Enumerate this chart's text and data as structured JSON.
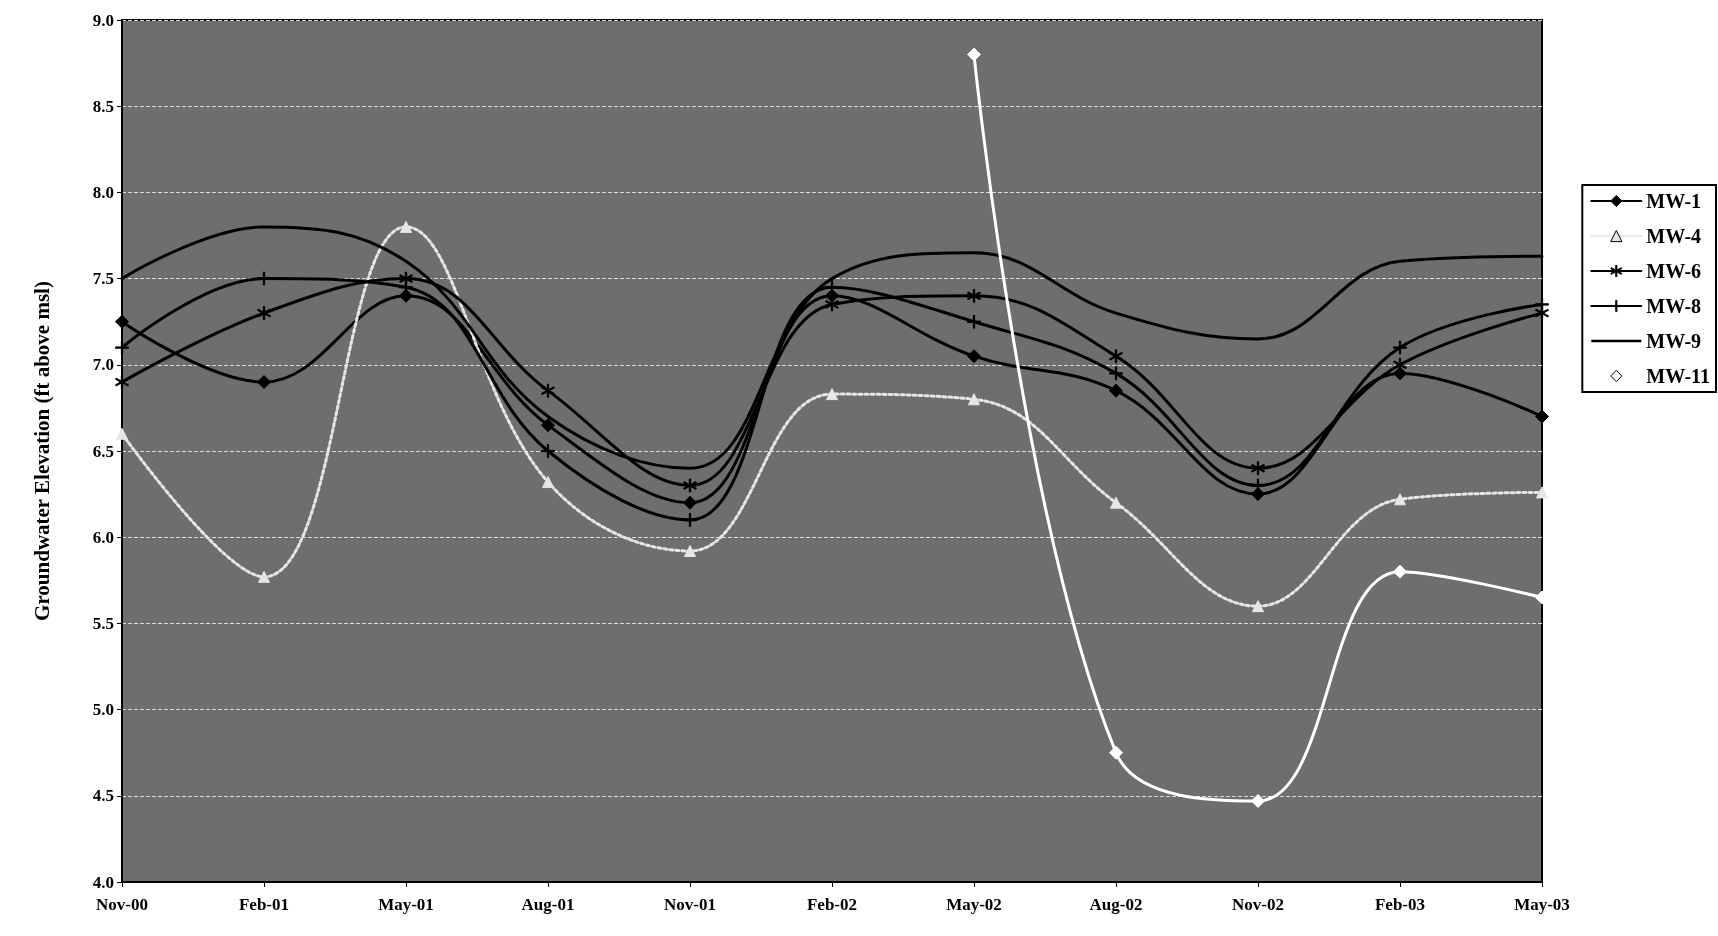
{
  "chart_data": {
    "type": "line",
    "ylabel": "Groundwater Elevation (ft above msl)",
    "categories": [
      "Nov-00",
      "Feb-01",
      "May-01",
      "Aug-01",
      "Nov-01",
      "Feb-02",
      "May-02",
      "Aug-02",
      "Nov-02",
      "Feb-03",
      "May-03"
    ],
    "series": [
      {
        "name": "MW-1",
        "color": "#000000",
        "marker": "diamond",
        "values": [
          7.25,
          6.9,
          7.4,
          6.65,
          6.2,
          7.4,
          7.05,
          6.85,
          6.25,
          6.95,
          6.7
        ]
      },
      {
        "name": "MW-4",
        "color": "#e6e6e6",
        "marker": "triangle",
        "line_style": "dotted",
        "values": [
          6.6,
          5.77,
          7.8,
          6.32,
          5.92,
          6.83,
          6.8,
          6.2,
          5.6,
          6.22,
          6.26
        ]
      },
      {
        "name": "MW-6",
        "color": "#000000",
        "marker": "cross",
        "values": [
          6.9,
          7.3,
          7.5,
          6.85,
          6.3,
          7.35,
          7.4,
          7.05,
          6.4,
          7.0,
          7.3
        ]
      },
      {
        "name": "MW-8",
        "color": "#000000",
        "marker": "plus",
        "values": [
          7.1,
          7.5,
          7.45,
          6.5,
          6.1,
          7.45,
          7.25,
          6.95,
          6.3,
          7.1,
          7.35
        ]
      },
      {
        "name": "MW-9",
        "color": "#000000",
        "marker": "none",
        "values": [
          7.5,
          7.8,
          7.6,
          6.7,
          6.4,
          7.5,
          7.65,
          7.3,
          7.15,
          7.6,
          7.63
        ]
      },
      {
        "name": "MW-11",
        "color": "#ffffff",
        "marker": "diamond",
        "values": [
          null,
          null,
          null,
          null,
          null,
          null,
          8.8,
          4.75,
          4.47,
          5.8,
          5.65
        ]
      }
    ],
    "ylim": [
      4.0,
      9.0
    ],
    "yticks": [
      {
        "value": 4,
        "label": "4.0"
      },
      4.5,
      {
        "value": 5,
        "label": "5.0"
      },
      5.5,
      {
        "value": 6,
        "label": "6.0"
      },
      6.5,
      {
        "value": 7,
        "label": "7.0"
      },
      7.5,
      {
        "value": 8,
        "label": "8.0"
      },
      8.5,
      {
        "value": 9,
        "label": "9.0"
      }
    ],
    "grid": "y",
    "legend": "right"
  }
}
